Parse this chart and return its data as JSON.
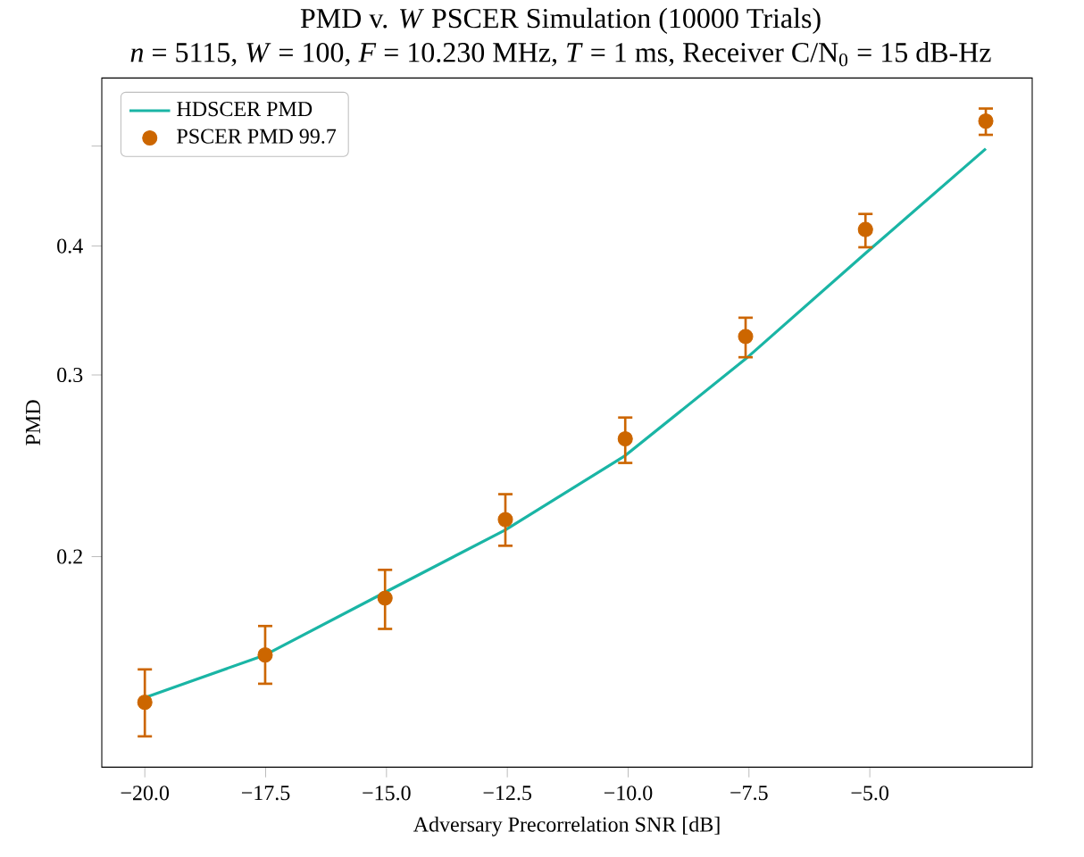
{
  "chart_data": {
    "type": "line",
    "title": "PMD v. *W* PSCER Simulation (10000 Trials)",
    "subtitle": "*n* = 5115, *W* = 100, *F* = 10.230 MHz, *T* = 1 ms, Receiver C/N$_{0}$ = 15 dB-Hz",
    "xlabel": "Adversary Precorrelation SNR [dB]",
    "ylabel": "PMD",
    "xlim": [
      -20.89,
      -1.64
    ],
    "ylim": [
      0.125,
      0.582
    ],
    "log": "y",
    "legend": "top left",
    "xticks": [
      {
        "value": -20,
        "label": "−20.0"
      },
      {
        "value": -17.5,
        "label": "−17.5"
      },
      {
        "value": -15,
        "label": "−15.0"
      },
      {
        "value": -12.5,
        "label": "−12.5"
      },
      {
        "value": -10,
        "label": "−10.0"
      },
      {
        "value": -7.5,
        "label": "−7.5"
      },
      {
        "value": -5,
        "label": "−5.0"
      }
    ],
    "yticks": [
      0.2,
      0.3,
      0.4,
      {
        "value": 0.5,
        "label": null
      }
    ],
    "series": [
      {
        "name": "HDSCER PMD",
        "color": "#1ab5a5",
        "marker": "none",
        "x": [
          -20,
          -17.51,
          -15.03,
          -12.54,
          -10.06,
          -7.57,
          -5.09,
          -2.6
        ],
        "values": [
          0.146,
          0.1606,
          0.1847,
          0.2123,
          0.2506,
          0.3109,
          0.3936,
          0.497
        ]
      },
      {
        "name": "PSCER PMD 99.7",
        "type": "scatter",
        "color": "#cc6600",
        "marker": "circle",
        "x": [
          -20,
          -17.51,
          -15.03,
          -12.54,
          -10.06,
          -7.57,
          -5.09,
          -2.6
        ],
        "values": [
          0.1445,
          0.1606,
          0.1823,
          0.2172,
          0.2602,
          0.3268,
          0.415,
          0.5287
        ],
        "errors": [
          [
            0.1339,
            0.1555
          ],
          [
            0.1506,
            0.1713
          ],
          [
            0.1702,
            0.1942
          ],
          [
            0.2049,
            0.2299
          ],
          [
            0.2465,
            0.2728
          ],
          [
            0.3121,
            0.3409
          ],
          [
            0.399,
            0.4297
          ],
          [
            0.5127,
            0.5437
          ]
        ]
      }
    ]
  }
}
